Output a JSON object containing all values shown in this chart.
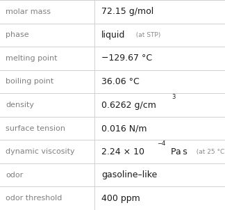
{
  "rows": [
    {
      "label": "molar mass",
      "value_parts": [
        {
          "text": "72.15 g/mol",
          "style": "normal",
          "size": "normal"
        }
      ]
    },
    {
      "label": "phase",
      "value_parts": [
        {
          "text": "liquid",
          "style": "normal",
          "size": "normal"
        },
        {
          "text": "  (at STP)",
          "style": "normal",
          "size": "small"
        }
      ]
    },
    {
      "label": "melting point",
      "value_parts": [
        {
          "text": "−129.67 °C",
          "style": "normal",
          "size": "normal"
        }
      ]
    },
    {
      "label": "boiling point",
      "value_parts": [
        {
          "text": "36.06 °C",
          "style": "normal",
          "size": "normal"
        }
      ]
    },
    {
      "label": "density",
      "value_parts": [
        {
          "text": "0.6262 g/cm",
          "style": "normal",
          "size": "normal"
        },
        {
          "text": "3",
          "style": "normal",
          "size": "super"
        }
      ]
    },
    {
      "label": "surface tension",
      "value_parts": [
        {
          "text": "0.016 N/m",
          "style": "normal",
          "size": "normal"
        }
      ]
    },
    {
      "label": "dynamic viscosity",
      "value_parts": [
        {
          "text": "2.24 × 10",
          "style": "normal",
          "size": "normal"
        },
        {
          "text": "−4",
          "style": "normal",
          "size": "super"
        },
        {
          "text": " Pa s",
          "style": "normal",
          "size": "normal"
        },
        {
          "text": "  (at 25 °C)",
          "style": "normal",
          "size": "small"
        }
      ]
    },
    {
      "label": "odor",
      "value_parts": [
        {
          "text": "gasoline–like",
          "style": "normal",
          "size": "normal"
        }
      ]
    },
    {
      "label": "odor threshold",
      "value_parts": [
        {
          "text": "400 ppm",
          "style": "normal",
          "size": "normal"
        }
      ]
    }
  ],
  "col_split": 0.42,
  "background_color": "#ffffff",
  "label_color": "#808080",
  "value_color": "#1a1a1a",
  "small_color": "#888888",
  "grid_color": "#d0d0d0",
  "label_fontsize": 8.0,
  "value_fontsize": 9.0,
  "small_fontsize": 6.5,
  "super_fontsize": 6.0
}
